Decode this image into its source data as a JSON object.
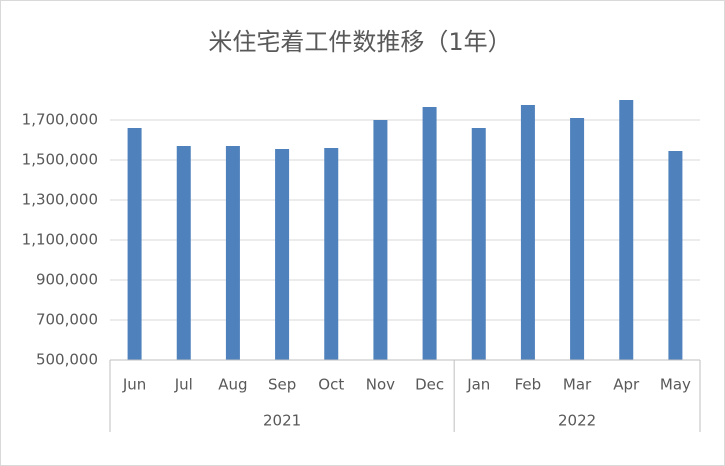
{
  "chart_data": {
    "type": "bar",
    "title": "米住宅着工件数推移（1年）",
    "color": "#4f81bd",
    "groups": [
      {
        "label": "2021",
        "categories": [
          "Jun",
          "Jul",
          "Aug",
          "Sep",
          "Oct",
          "Nov",
          "Dec"
        ],
        "values": [
          1660000,
          1570000,
          1570000,
          1555000,
          1560000,
          1700000,
          1765000
        ]
      },
      {
        "label": "2022",
        "categories": [
          "Jan",
          "Feb",
          "Mar",
          "Apr",
          "May"
        ],
        "values": [
          1660000,
          1775000,
          1710000,
          1800000,
          1545000
        ]
      }
    ],
    "ylim": [
      500000,
      1800000
    ],
    "yticks": [
      {
        "value": 500000,
        "label": "500,000"
      },
      {
        "value": 700000,
        "label": "700,000"
      },
      {
        "value": 900000,
        "label": "900,000"
      },
      {
        "value": 1100000,
        "label": "1,100,000"
      },
      {
        "value": 1300000,
        "label": "1,300,000"
      },
      {
        "value": 1500000,
        "label": "1,500,000"
      },
      {
        "value": 1700000,
        "label": "1,700,000"
      }
    ],
    "grid": true
  }
}
